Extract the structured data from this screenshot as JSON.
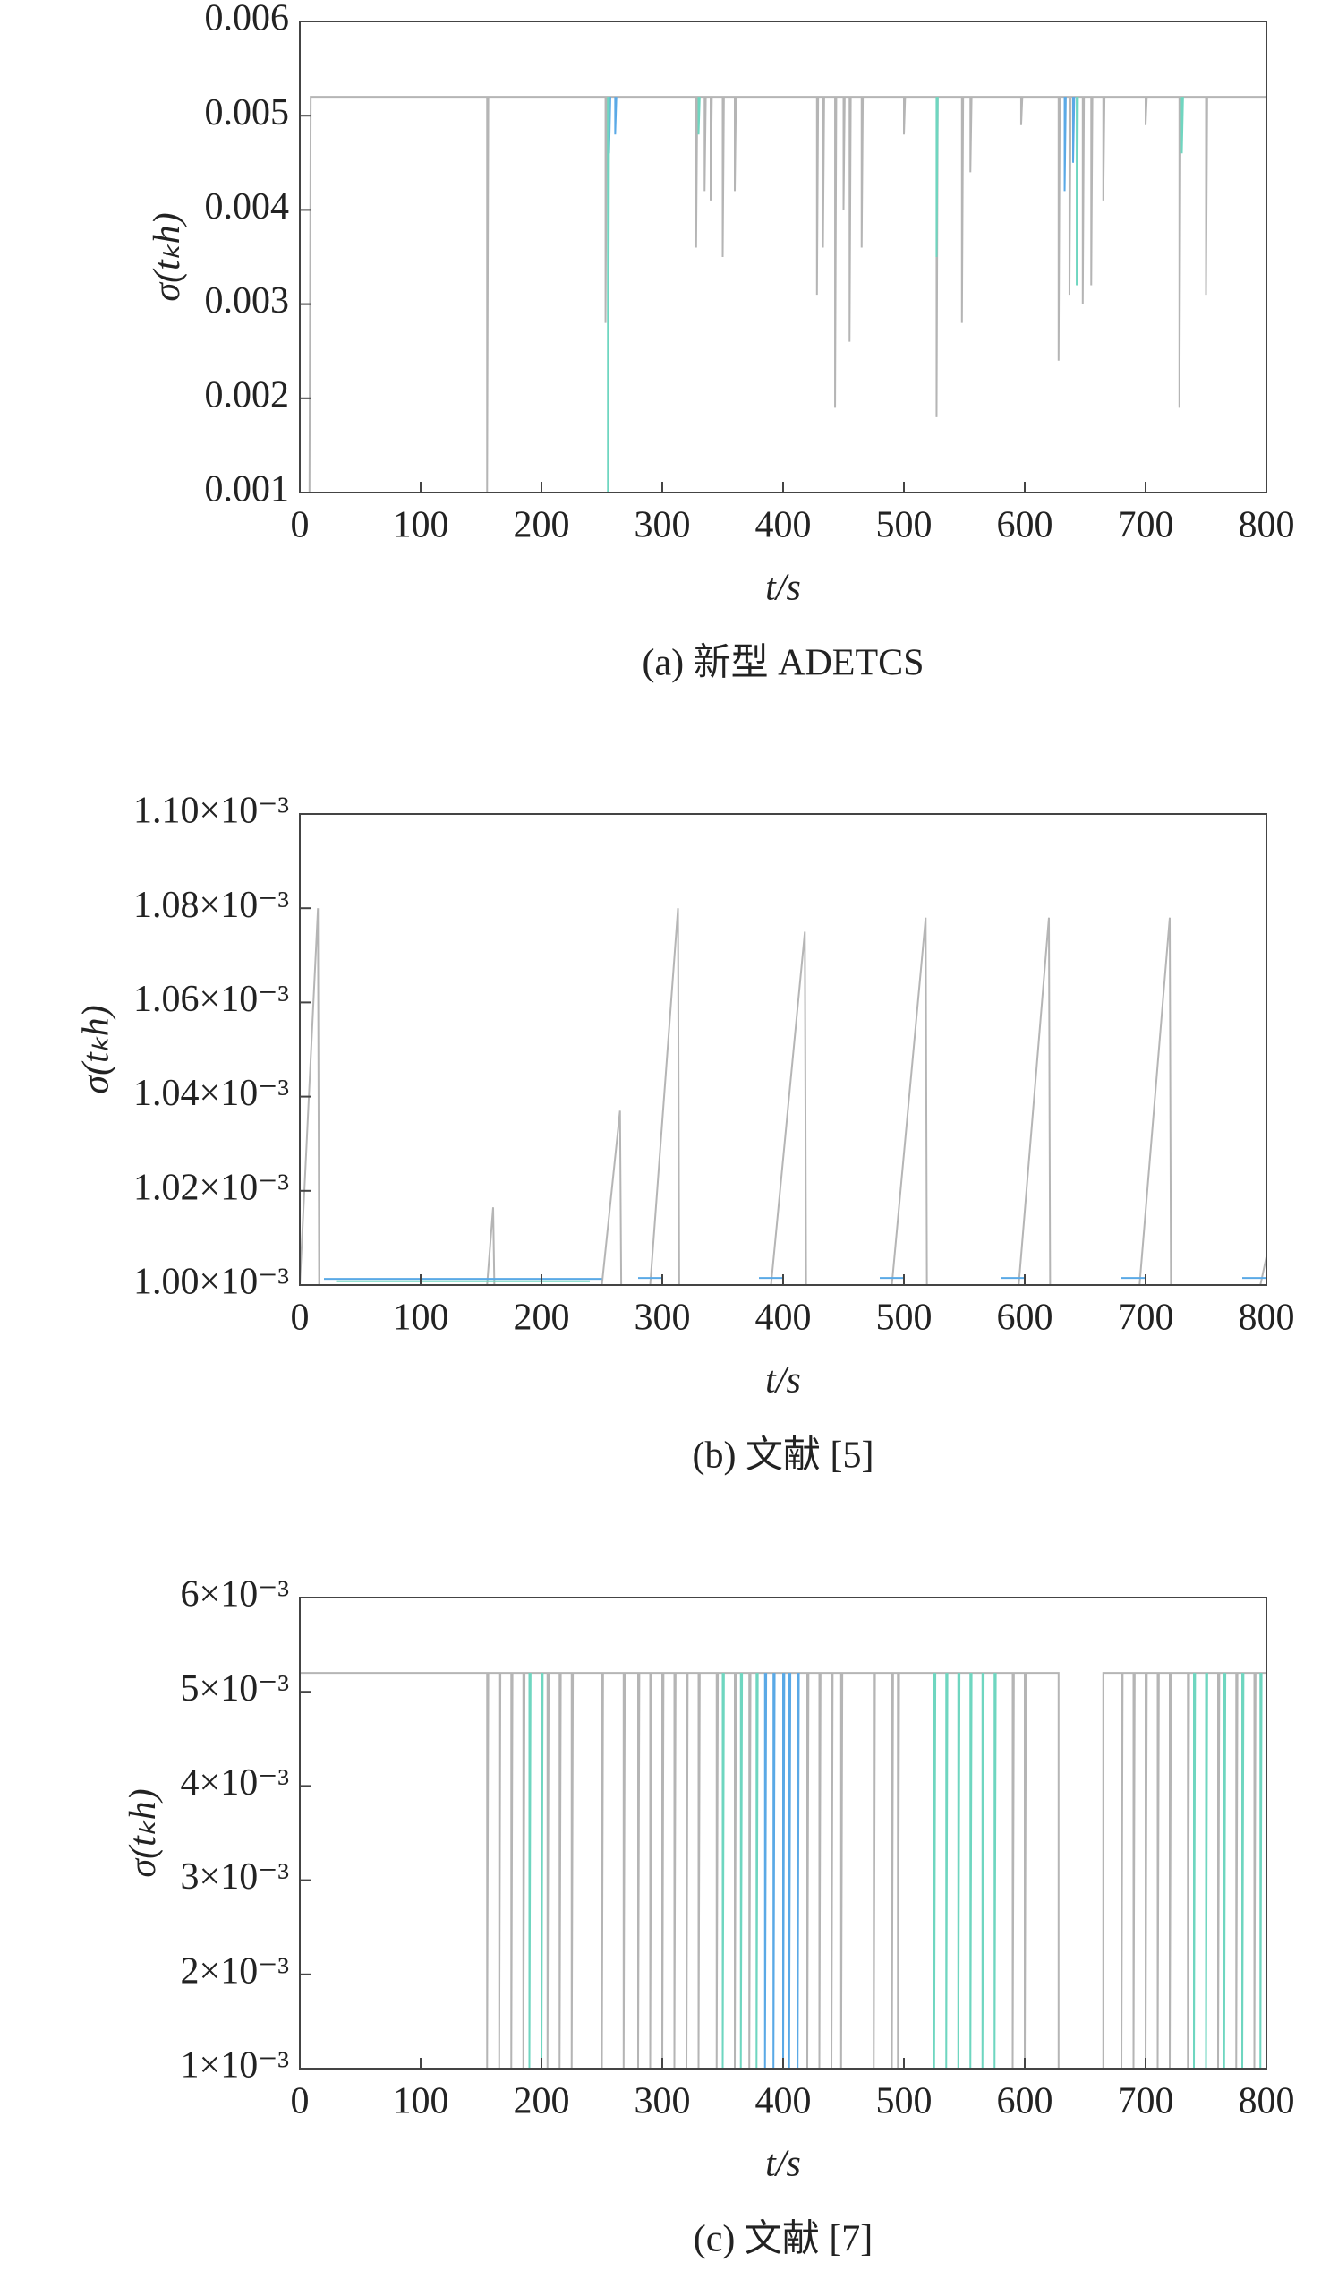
{
  "chart_data": [
    {
      "type": "line",
      "caption": "(a) 新型 ADETCS",
      "xlabel": "t/s",
      "ylabel": "σ(tₖh)",
      "xlim": [
        0,
        800
      ],
      "xticks": [
        0,
        100,
        200,
        300,
        400,
        500,
        600,
        700,
        800
      ],
      "ylim": [
        0.001,
        0.006
      ],
      "yticks": [
        0.001,
        0.002,
        0.003,
        0.004,
        0.005,
        0.006
      ],
      "series": [
        {
          "color": "#b5b5b5",
          "x": [
            8,
            9,
            155,
            155,
            156,
            253,
            253,
            254,
            328,
            328,
            329,
            335,
            335,
            336,
            340,
            340,
            341,
            350,
            350,
            351,
            360,
            360,
            361,
            428,
            428,
            429,
            433,
            433,
            434,
            443,
            443,
            444,
            450,
            450,
            451,
            455,
            455,
            456,
            465,
            465,
            466,
            500,
            500,
            501,
            527,
            527,
            528,
            548,
            548,
            549,
            555,
            555,
            556,
            597,
            597,
            598,
            628,
            628,
            629,
            637,
            637,
            638,
            648,
            648,
            649,
            655,
            655,
            656,
            665,
            665,
            666,
            700,
            700,
            701,
            728,
            728,
            729,
            750,
            750,
            751,
            800
          ],
          "values": [
            0.001,
            0.0052,
            0.0052,
            0.001,
            0.0052,
            0.0052,
            0.0028,
            0.0052,
            0.0052,
            0.0036,
            0.0052,
            0.0052,
            0.0042,
            0.0052,
            0.0052,
            0.0041,
            0.0052,
            0.0052,
            0.0035,
            0.0052,
            0.0052,
            0.0042,
            0.0052,
            0.0052,
            0.0031,
            0.0052,
            0.0052,
            0.0036,
            0.0052,
            0.0052,
            0.0019,
            0.0052,
            0.0052,
            0.004,
            0.0052,
            0.0052,
            0.0026,
            0.0052,
            0.0052,
            0.0036,
            0.0052,
            0.0052,
            0.0048,
            0.0052,
            0.0052,
            0.0018,
            0.0052,
            0.0052,
            0.0028,
            0.0052,
            0.0052,
            0.0044,
            0.0052,
            0.0052,
            0.0049,
            0.0052,
            0.0052,
            0.0024,
            0.0052,
            0.0052,
            0.0031,
            0.0052,
            0.0052,
            0.003,
            0.0052,
            0.0052,
            0.0032,
            0.0052,
            0.0052,
            0.0041,
            0.0052,
            0.0052,
            0.0049,
            0.0052,
            0.0052,
            0.0019,
            0.0052,
            0.0052,
            0.0031,
            0.0052,
            0.0052
          ]
        },
        {
          "color": "#5aa9e6",
          "x": [
            256,
            256,
            257,
            null,
            261,
            261,
            262,
            null,
            633,
            633,
            634,
            null,
            640,
            640,
            641
          ],
          "values": [
            0.0052,
            0.0046,
            0.0052,
            null,
            0.0052,
            0.0048,
            0.0052,
            null,
            0.0052,
            0.0042,
            0.0052,
            null,
            0.0052,
            0.0045,
            0.0052
          ]
        },
        {
          "color": "#6fd6c0",
          "x": [
            255,
            255,
            256,
            null,
            330,
            330,
            331,
            null,
            527,
            527,
            528,
            null,
            643,
            643,
            644,
            null,
            730,
            730,
            731
          ],
          "values": [
            0.0052,
            0.001,
            0.0052,
            null,
            0.0052,
            0.0048,
            0.0052,
            null,
            0.0052,
            0.0035,
            0.0052,
            null,
            0.0052,
            0.0032,
            0.0052,
            null,
            0.0052,
            0.0046,
            0.0052
          ]
        }
      ]
    },
    {
      "type": "line",
      "caption": "(b) 文献 [5]",
      "xlabel": "t/s",
      "ylabel": "σ(tₖh)",
      "xlim": [
        0,
        800
      ],
      "xticks": [
        0,
        100,
        200,
        300,
        400,
        500,
        600,
        700,
        800
      ],
      "ylim": [
        0.001,
        0.0011
      ],
      "yticks": [
        {
          "value": 0.001,
          "label": "1.00×10⁻³"
        },
        {
          "value": 0.00102,
          "label": "1.02×10⁻³"
        },
        {
          "value": 0.00104,
          "label": "1.04×10⁻³"
        },
        {
          "value": 0.00106,
          "label": "1.06×10⁻³"
        },
        {
          "value": 0.00108,
          "label": "1.08×10⁻³"
        },
        {
          "value": 0.0011,
          "label": "1.10×10⁻³"
        }
      ],
      "series": [
        {
          "color": "#b5b5b5",
          "x": [
            0,
            15,
            16,
            155,
            160,
            161,
            250,
            265,
            266,
            290,
            313,
            314,
            390,
            418,
            419,
            490,
            518,
            519,
            595,
            620,
            621,
            695,
            720,
            721,
            795,
            800
          ],
          "values": [
            0.001,
            0.00108,
            0.001,
            0.001,
            0.0010165,
            0.001,
            0.001,
            0.001037,
            0.001,
            0.001,
            0.00108,
            0.001,
            0.001,
            0.001075,
            0.001,
            0.001,
            0.001078,
            0.001,
            0.001,
            0.001078,
            0.001,
            0.001,
            0.001078,
            0.001,
            0.001,
            0.001006
          ]
        },
        {
          "color": "#5aa9e6",
          "x": [
            20,
            250,
            null,
            280,
            300,
            null,
            380,
            400,
            null,
            480,
            500,
            null,
            580,
            600,
            null,
            680,
            700,
            null,
            780,
            800
          ],
          "values": [
            0.0010013,
            0.0010013,
            null,
            0.0010015,
            0.0010015,
            null,
            0.0010015,
            0.0010015,
            null,
            0.0010015,
            0.0010015,
            null,
            0.0010015,
            0.0010015,
            null,
            0.0010015,
            0.0010015,
            null,
            0.0010015,
            0.0010015
          ]
        },
        {
          "color": "#6fd6c0",
          "x": [
            30,
            240
          ],
          "values": [
            0.0010008,
            0.0010008
          ]
        }
      ]
    },
    {
      "type": "line",
      "caption": "(c) 文献 [7]",
      "xlabel": "t/s",
      "ylabel": "σ(tₖh)",
      "xlim": [
        0,
        800
      ],
      "xticks": [
        0,
        100,
        200,
        300,
        400,
        500,
        600,
        700,
        800
      ],
      "ylim": [
        0.001,
        0.006
      ],
      "yticks": [
        {
          "value": 0.001,
          "label": "1×10⁻³"
        },
        {
          "value": 0.002,
          "label": "2×10⁻³"
        },
        {
          "value": 0.003,
          "label": "3×10⁻³"
        },
        {
          "value": 0.004,
          "label": "4×10⁻³"
        },
        {
          "value": 0.005,
          "label": "5×10⁻³"
        },
        {
          "value": 0.006,
          "label": "6×10⁻³"
        }
      ],
      "series": [
        {
          "color": "#b5b5b5",
          "x": [
            0,
            155,
            155,
            156,
            165,
            165,
            166,
            175,
            175,
            176,
            185,
            185,
            186,
            205,
            205,
            206,
            215,
            215,
            216,
            225,
            225,
            226,
            250,
            250,
            251,
            268,
            268,
            269,
            280,
            280,
            281,
            290,
            290,
            291,
            300,
            300,
            301,
            310,
            310,
            311,
            320,
            320,
            321,
            330,
            330,
            331,
            345,
            345,
            346,
            360,
            360,
            361,
            372,
            372,
            373,
            420,
            420,
            421,
            430,
            430,
            431,
            440,
            440,
            441,
            448,
            448,
            449,
            475,
            475,
            476,
            490,
            490,
            491,
            495,
            495,
            496,
            590,
            590,
            591,
            600,
            600,
            601,
            628,
            628,
            665,
            665,
            680,
            680,
            681,
            690,
            690,
            691,
            700,
            700,
            701,
            710,
            710,
            711,
            720,
            720,
            721,
            735,
            735,
            736,
            760,
            760,
            761,
            775,
            775,
            776,
            790,
            790,
            791,
            800
          ],
          "values": [
            0.0052,
            0.0052,
            0.001,
            0.0052,
            0.0052,
            0.001,
            0.0052,
            0.0052,
            0.001,
            0.0052,
            0.0052,
            0.001,
            0.0052,
            0.0052,
            0.001,
            0.0052,
            0.0052,
            0.001,
            0.0052,
            0.0052,
            0.001,
            0.0052,
            0.0052,
            0.001,
            0.0052,
            0.0052,
            0.001,
            0.0052,
            0.0052,
            0.001,
            0.0052,
            0.0052,
            0.001,
            0.0052,
            0.0052,
            0.001,
            0.0052,
            0.0052,
            0.001,
            0.0052,
            0.0052,
            0.001,
            0.0052,
            0.0052,
            0.001,
            0.0052,
            0.0052,
            0.001,
            0.0052,
            0.0052,
            0.001,
            0.0052,
            0.0052,
            0.001,
            0.0052,
            0.0052,
            0.001,
            0.0052,
            0.0052,
            0.001,
            0.0052,
            0.0052,
            0.001,
            0.0052,
            0.0052,
            0.001,
            0.0052,
            0.0052,
            0.001,
            0.0052,
            0.0052,
            0.001,
            0.0052,
            0.0052,
            0.001,
            0.0052,
            0.0052,
            0.001,
            0.0052,
            0.0052,
            0.001,
            0.0052,
            0.0052,
            0.001,
            0.001,
            0.0052,
            0.0052,
            0.001,
            0.0052,
            0.0052,
            0.001,
            0.0052,
            0.0052,
            0.001,
            0.0052,
            0.0052,
            0.001,
            0.0052,
            0.0052,
            0.001,
            0.0052,
            0.0052,
            0.001,
            0.0052,
            0.0052,
            0.001,
            0.0052,
            0.0052,
            0.001,
            0.0052,
            0.0052,
            0.001,
            0.0052,
            0.0052
          ]
        },
        {
          "color": "#5aa9e6",
          "x": [
            385,
            385,
            386,
            null,
            392,
            392,
            393,
            null,
            400,
            400,
            401,
            null,
            405,
            405,
            406,
            null,
            412,
            412,
            413
          ],
          "values": [
            0.0052,
            0.001,
            0.0052,
            null,
            0.0052,
            0.001,
            0.0052,
            null,
            0.0052,
            0.001,
            0.0052,
            null,
            0.0052,
            0.001,
            0.0052,
            null,
            0.0052,
            0.001,
            0.0052
          ]
        },
        {
          "color": "#6fd6c0",
          "x": [
            190,
            190,
            191,
            null,
            200,
            200,
            201,
            null,
            350,
            350,
            351,
            null,
            365,
            365,
            366,
            null,
            378,
            378,
            379,
            null,
            525,
            525,
            526,
            null,
            535,
            535,
            536,
            null,
            545,
            545,
            546,
            null,
            555,
            555,
            556,
            null,
            565,
            565,
            566,
            null,
            575,
            575,
            576,
            null,
            740,
            740,
            741,
            null,
            750,
            750,
            751,
            null,
            765,
            765,
            766,
            null,
            780,
            780,
            781,
            null,
            795,
            795,
            796
          ],
          "values": [
            0.0052,
            0.001,
            0.0052,
            null,
            0.0052,
            0.001,
            0.0052,
            null,
            0.0052,
            0.001,
            0.0052,
            null,
            0.0052,
            0.001,
            0.0052,
            null,
            0.0052,
            0.001,
            0.0052,
            null,
            0.0052,
            0.001,
            0.0052,
            null,
            0.0052,
            0.001,
            0.0052,
            null,
            0.0052,
            0.001,
            0.0052,
            null,
            0.0052,
            0.001,
            0.0052,
            null,
            0.0052,
            0.001,
            0.0052,
            null,
            0.0052,
            0.001,
            0.0052,
            null,
            0.0052,
            0.001,
            0.0052,
            null,
            0.0052,
            0.001,
            0.0052,
            null,
            0.0052,
            0.001,
            0.0052,
            null,
            0.0052,
            0.001,
            0.0052,
            null,
            0.0052,
            0.001,
            0.0052
          ]
        }
      ]
    }
  ]
}
